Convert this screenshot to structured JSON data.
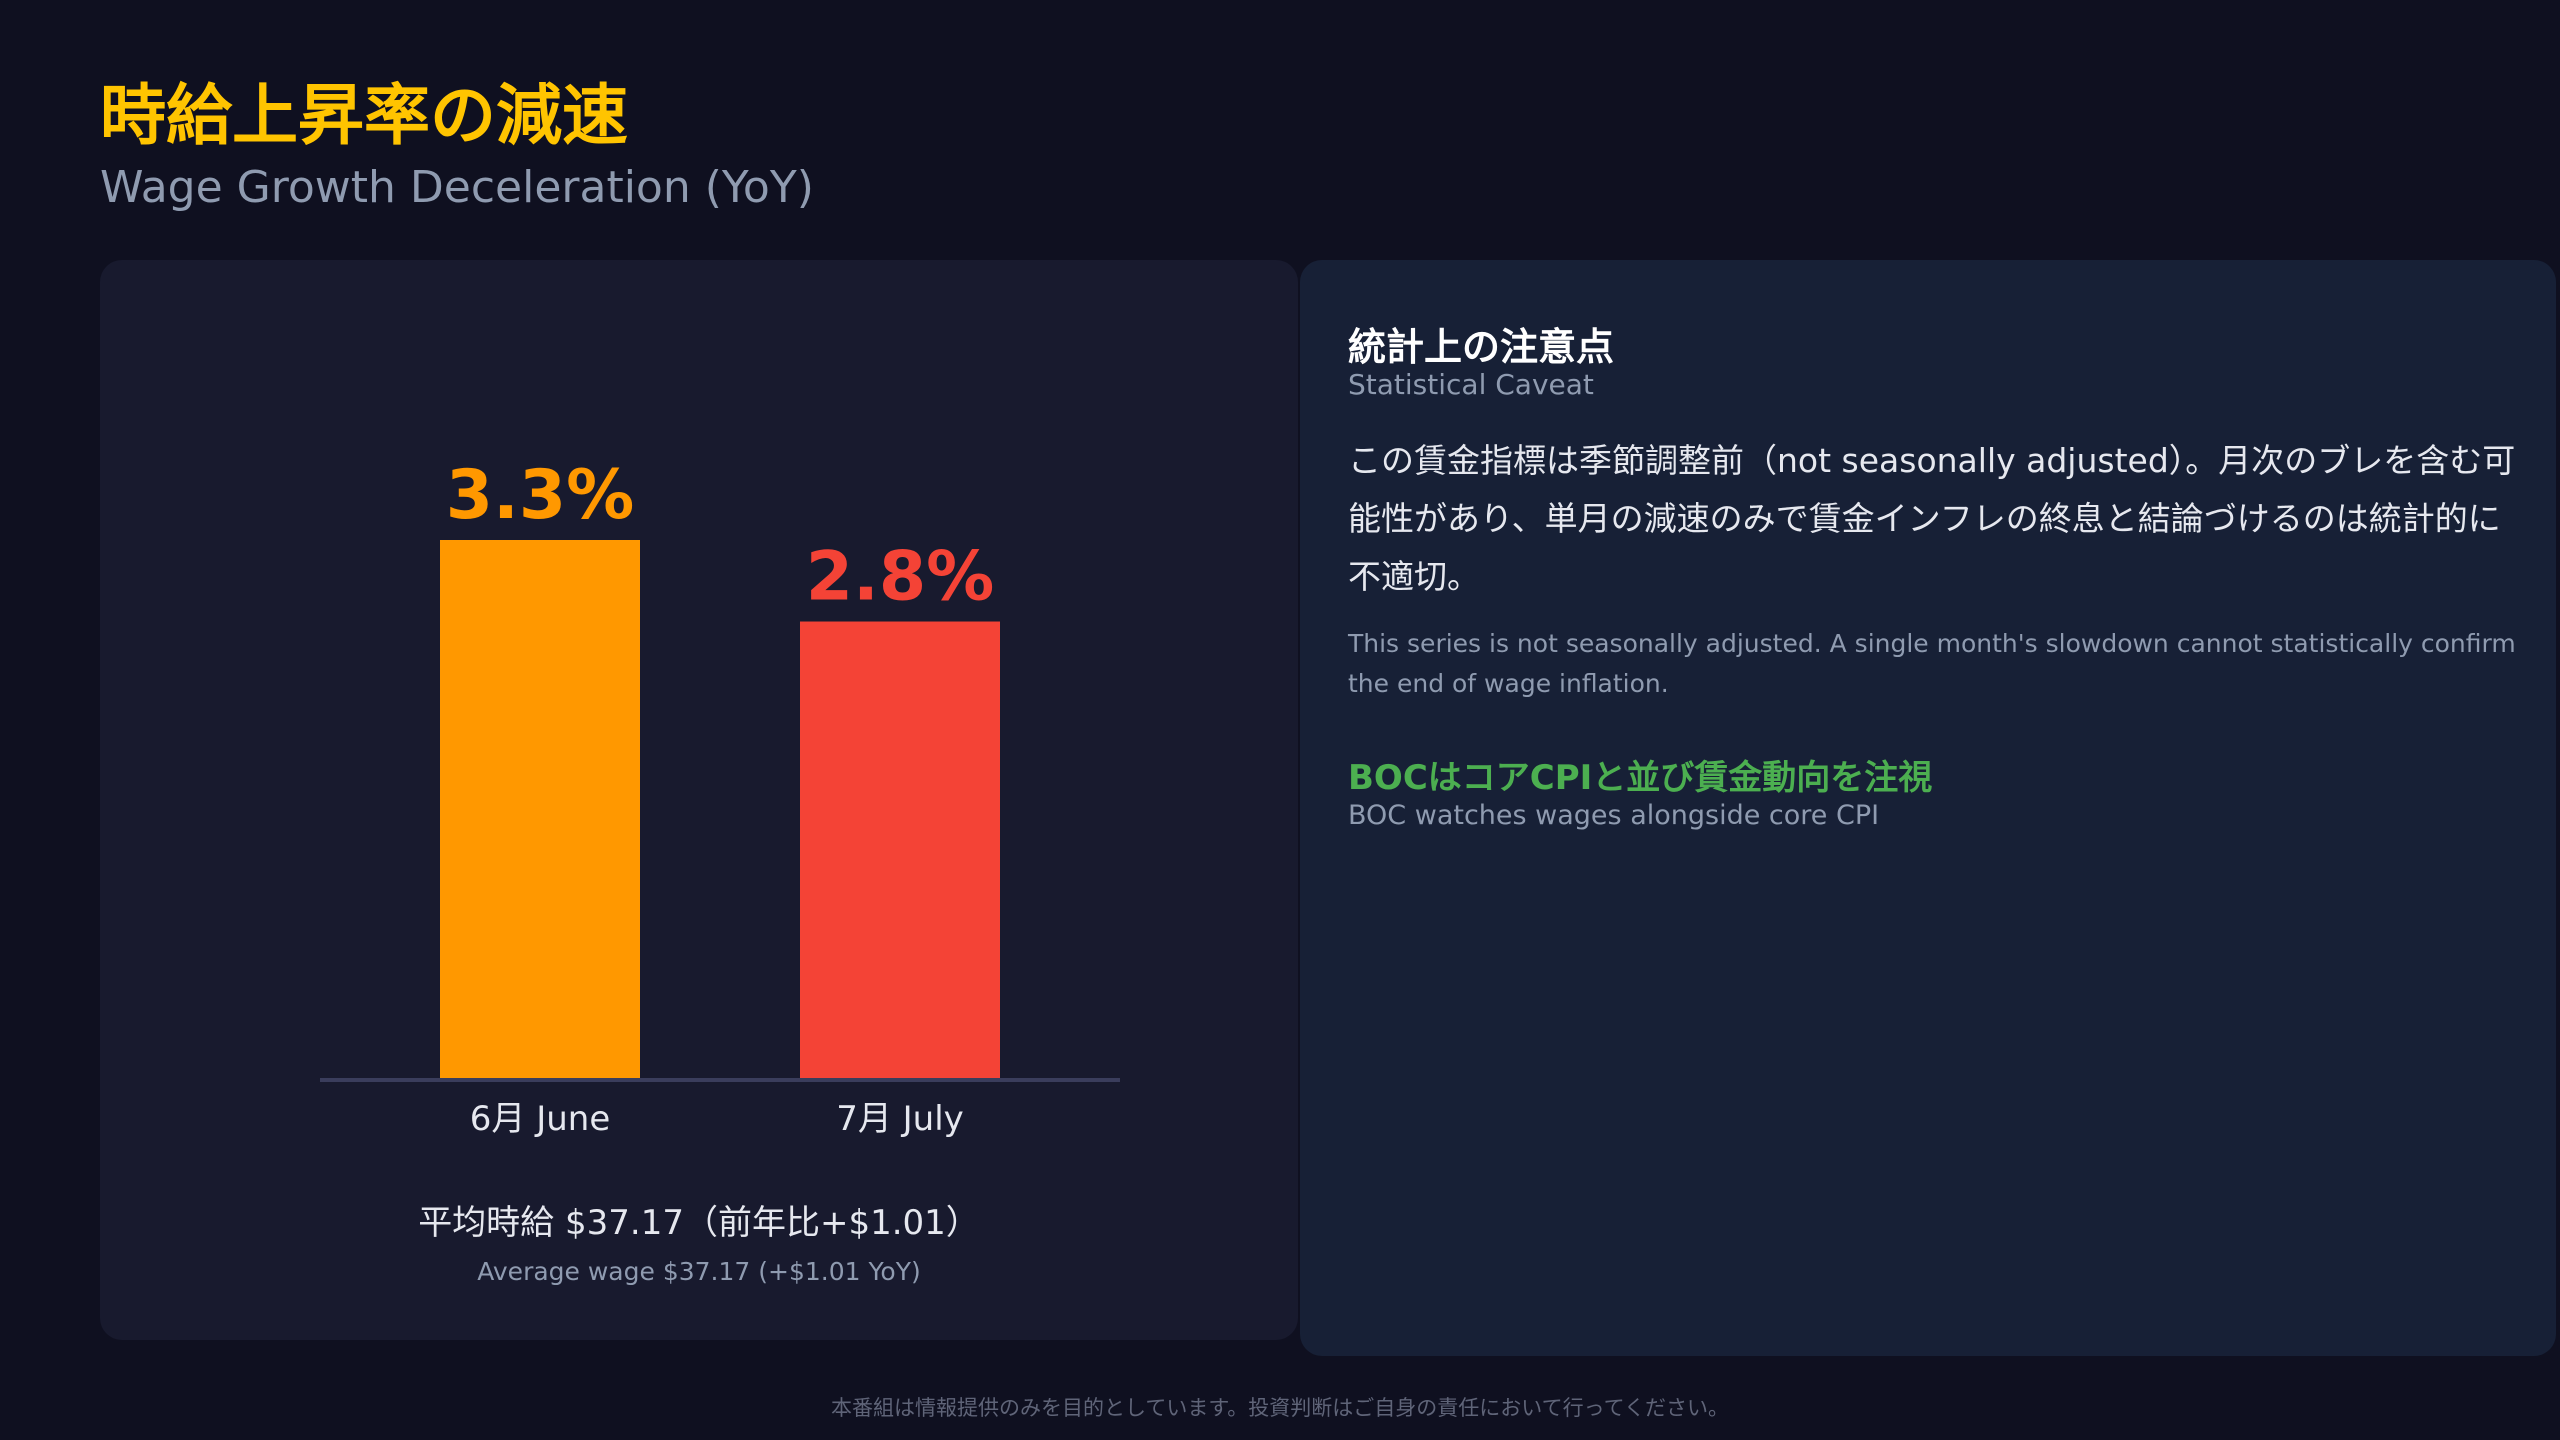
{
  "header": {
    "title": "時給上昇率の減速",
    "subtitle": "Wage Growth Deceleration (YoY)"
  },
  "chart_data": {
    "type": "bar",
    "categories": [
      "6月 June",
      "7月 July"
    ],
    "values": [
      3.3,
      2.8
    ],
    "value_labels": [
      "3.3%",
      "2.8%"
    ],
    "colors": [
      "#ff9800",
      "#f44336"
    ],
    "ylim": [
      0,
      3.3
    ],
    "grid": false,
    "legend": "none"
  },
  "average_wage": {
    "jp": "平均時給 $37.17（前年比+$1.01）",
    "en": "Average wage $37.17 (+$1.01 YoY)"
  },
  "caveat": {
    "title_jp": "統計上の注意点",
    "title_en": "Statistical Caveat",
    "body_jp": "この賃金指標は季節調整前（not seasonally adjusted）。月次のブレを含む可能性があり、単月の減速のみで賃金インフレの終息と結論づけるのは統計的に不適切。",
    "body_en": "This series is not seasonally adjusted. A single month's slowdown cannot statistically confirm the end of wage inflation.",
    "boc_jp": "BOCはコアCPIと並び賃金動向を注視",
    "boc_en": "BOC watches wages alongside core CPI"
  },
  "colors": {
    "background": "#0f1020",
    "accent_title": "#ffc400",
    "boc_green": "#4caf50"
  },
  "footer": {
    "disclaimer": "本番組は情報提供のみを目的としています。投資判断はご自身の責任において行ってください。"
  }
}
